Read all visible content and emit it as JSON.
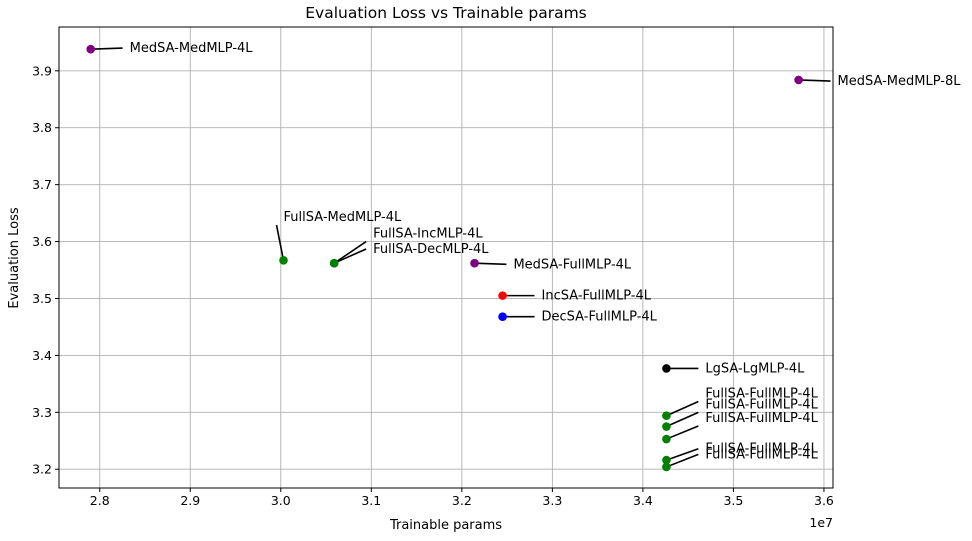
{
  "chart_data": {
    "type": "scatter",
    "title": "Evaluation Loss vs Trainable params",
    "xlabel": "Trainable params",
    "ylabel": "Evaluation Loss",
    "x_offset_label": "1e7",
    "x_scale": 10000000,
    "xlim": [
      2.755,
      3.61
    ],
    "ylim": [
      3.167,
      3.977
    ],
    "x_ticks": [
      2.8,
      2.9,
      3.0,
      3.1,
      3.2,
      3.3,
      3.4,
      3.5,
      3.6
    ],
    "x_tick_labels": [
      "2.8",
      "2.9",
      "3.0",
      "3.1",
      "3.2",
      "3.3",
      "3.4",
      "3.5",
      "3.6"
    ],
    "y_ticks": [
      3.2,
      3.3,
      3.4,
      3.5,
      3.6,
      3.7,
      3.8,
      3.9
    ],
    "y_tick_labels": [
      "3.2",
      "3.3",
      "3.4",
      "3.5",
      "3.6",
      "3.7",
      "3.8",
      "3.9"
    ],
    "grid": true,
    "colors": {
      "purple": "#800080",
      "green": "#008000",
      "red": "#ff0000",
      "blue": "#0000ff",
      "black": "#000000"
    },
    "points": [
      {
        "label": "MedSA-MedMLP-4L",
        "x": 2.79,
        "y": 3.938,
        "color": "#800080",
        "tx": 2.833,
        "ty": 3.94
      },
      {
        "label": "MedSA-MedMLP-8L",
        "x": 3.572,
        "y": 3.884,
        "color": "#800080",
        "tx": 3.615,
        "ty": 3.882
      },
      {
        "label": "FullSA-MedMLP-4L",
        "x": 3.003,
        "y": 3.567,
        "color": "#008000",
        "tx": 3.003,
        "ty": 3.643
      },
      {
        "label": "FullSA-IncMLP-4L",
        "x": 3.059,
        "y": 3.562,
        "color": "#008000",
        "tx": 3.102,
        "ty": 3.614
      },
      {
        "label": "FullSA-DecMLP-4L",
        "x": 3.059,
        "y": 3.562,
        "color": "#008000",
        "tx": 3.102,
        "ty": 3.587
      },
      {
        "label": "MedSA-FullMLP-4L",
        "x": 3.214,
        "y": 3.562,
        "color": "#800080",
        "tx": 3.257,
        "ty": 3.56
      },
      {
        "label": "IncSA-FullMLP-4L",
        "x": 3.245,
        "y": 3.505,
        "color": "#ff0000",
        "tx": 3.288,
        "ty": 3.505
      },
      {
        "label": "DecSA-FullMLP-4L",
        "x": 3.245,
        "y": 3.468,
        "color": "#0000ff",
        "tx": 3.288,
        "ty": 3.468
      },
      {
        "label": "LgSA-LgMLP-4L",
        "x": 3.426,
        "y": 3.377,
        "color": "#000000",
        "tx": 3.469,
        "ty": 3.377
      },
      {
        "label": "FullSA-FullMLP-4L",
        "x": 3.426,
        "y": 3.294,
        "color": "#008000",
        "tx": 3.469,
        "ty": 3.333
      },
      {
        "label": "FullSA-FullMLP-4L",
        "x": 3.426,
        "y": 3.275,
        "color": "#008000",
        "tx": 3.469,
        "ty": 3.314
      },
      {
        "label": "FullSA-FullMLP-4L",
        "x": 3.426,
        "y": 3.253,
        "color": "#008000",
        "tx": 3.469,
        "ty": 3.29
      },
      {
        "label": "FullSA-FullMLP-4L",
        "x": 3.426,
        "y": 3.216,
        "color": "#008000",
        "tx": 3.469,
        "ty": 3.236
      },
      {
        "label": "FullSA-FullMLP-4L",
        "x": 3.426,
        "y": 3.204,
        "color": "#008000",
        "tx": 3.469,
        "ty": 3.226
      }
    ]
  }
}
